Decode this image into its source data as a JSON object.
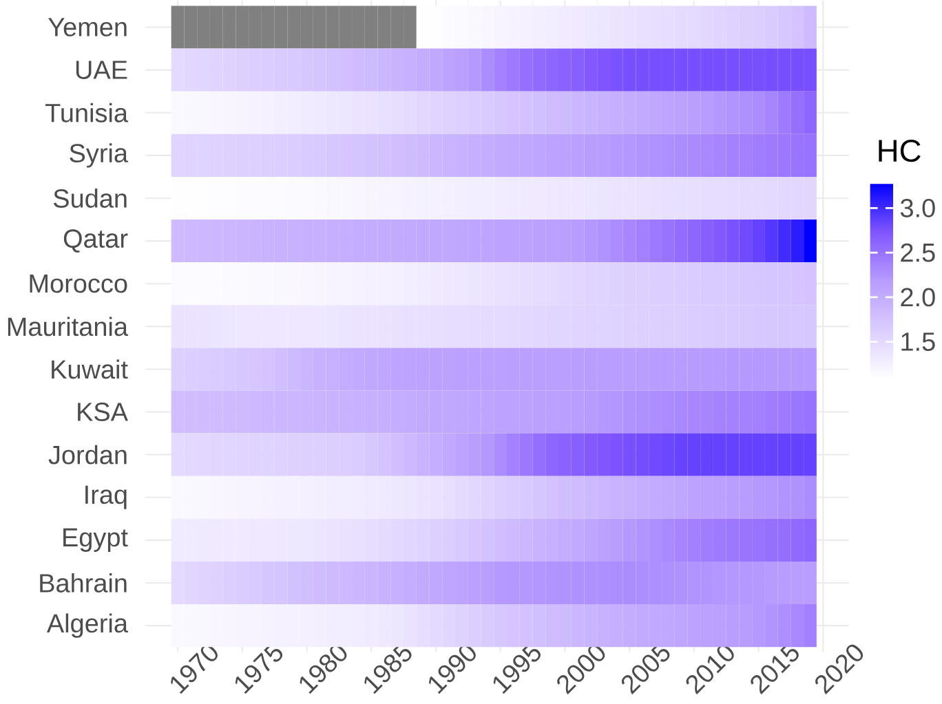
{
  "chart_data": {
    "type": "heatmap",
    "clabel": "HC",
    "grid": true,
    "x": [
      1970,
      1971,
      1972,
      1973,
      1974,
      1975,
      1976,
      1977,
      1978,
      1979,
      1980,
      1981,
      1982,
      1983,
      1984,
      1985,
      1986,
      1987,
      1988,
      1989,
      1990,
      1991,
      1992,
      1993,
      1994,
      1995,
      1996,
      1997,
      1998,
      1999,
      2000,
      2001,
      2002,
      2003,
      2004,
      2005,
      2006,
      2007,
      2008,
      2009,
      2010,
      2011,
      2012,
      2013,
      2014,
      2015,
      2016,
      2017,
      2018,
      2019
    ],
    "xlim": [
      1967.5,
      2022
    ],
    "xticks": [
      1970,
      1975,
      1980,
      1985,
      1990,
      1995,
      2000,
      2005,
      2010,
      2015,
      2020
    ],
    "y_categories": [
      "Yemen",
      "UAE",
      "Tunisia",
      "Syria",
      "Sudan",
      "Qatar",
      "Morocco",
      "Mauritania",
      "Kuwait",
      "KSA",
      "Jordan",
      "Iraq",
      "Egypt",
      "Bahrain",
      "Algeria"
    ],
    "clim": [
      1.08,
      3.28
    ],
    "cticks": [
      1.5,
      {
        "value": 2,
        "label": "2.0"
      },
      2.5,
      {
        "value": 3,
        "label": "3.0"
      }
    ],
    "cells": [
      [
        null,
        null,
        null,
        null,
        null,
        null,
        null,
        null,
        null,
        null,
        null,
        null,
        null,
        null,
        null,
        null,
        null,
        null,
        null,
        1.1,
        1.1,
        1.12,
        1.14,
        1.16,
        1.18,
        1.2,
        1.22,
        1.24,
        1.26,
        1.28,
        1.3,
        1.32,
        1.34,
        1.36,
        1.38,
        1.4,
        1.42,
        1.44,
        1.46,
        1.48,
        1.5,
        1.52,
        1.55,
        1.58,
        1.6,
        1.63,
        1.66,
        1.7,
        1.75,
        1.85
      ],
      [
        1.5,
        1.52,
        1.54,
        1.56,
        1.58,
        1.6,
        1.62,
        1.64,
        1.66,
        1.68,
        1.7,
        1.73,
        1.76,
        1.79,
        1.82,
        1.85,
        1.88,
        1.92,
        1.96,
        2.0,
        2.05,
        2.1,
        2.15,
        2.2,
        2.3,
        2.38,
        2.45,
        2.52,
        2.56,
        2.6,
        2.63,
        2.66,
        2.7,
        2.73,
        2.75,
        2.76,
        2.77,
        2.77,
        2.77,
        2.77,
        2.77,
        2.77,
        2.77,
        2.77,
        2.77,
        2.77,
        2.77,
        2.77,
        2.77,
        2.77
      ],
      [
        1.15,
        1.16,
        1.17,
        1.18,
        1.19,
        1.2,
        1.22,
        1.24,
        1.26,
        1.28,
        1.3,
        1.32,
        1.34,
        1.36,
        1.38,
        1.4,
        1.43,
        1.46,
        1.49,
        1.52,
        1.55,
        1.58,
        1.61,
        1.64,
        1.67,
        1.7,
        1.73,
        1.76,
        1.79,
        1.82,
        1.85,
        1.88,
        1.91,
        1.94,
        1.97,
        2.0,
        2.03,
        2.06,
        2.09,
        2.12,
        2.15,
        2.18,
        2.21,
        2.24,
        2.27,
        2.3,
        2.36,
        2.44,
        2.52,
        2.6
      ],
      [
        1.55,
        1.56,
        1.57,
        1.58,
        1.59,
        1.6,
        1.61,
        1.62,
        1.63,
        1.64,
        1.66,
        1.68,
        1.7,
        1.72,
        1.74,
        1.76,
        1.78,
        1.8,
        1.82,
        1.85,
        1.88,
        1.91,
        1.94,
        1.97,
        2.0,
        2.02,
        2.04,
        2.06,
        2.08,
        2.1,
        2.12,
        2.14,
        2.16,
        2.18,
        2.2,
        2.22,
        2.24,
        2.26,
        2.28,
        2.3,
        2.32,
        2.34,
        2.36,
        2.38,
        2.4,
        2.42,
        2.44,
        2.46,
        2.48,
        2.5
      ],
      [
        1.1,
        1.1,
        1.1,
        1.11,
        1.11,
        1.12,
        1.12,
        1.13,
        1.13,
        1.14,
        1.14,
        1.15,
        1.16,
        1.17,
        1.18,
        1.19,
        1.2,
        1.21,
        1.22,
        1.23,
        1.24,
        1.25,
        1.26,
        1.27,
        1.28,
        1.29,
        1.3,
        1.31,
        1.32,
        1.33,
        1.34,
        1.35,
        1.36,
        1.37,
        1.38,
        1.39,
        1.4,
        1.41,
        1.42,
        1.43,
        1.44,
        1.45,
        1.46,
        1.47,
        1.48,
        1.49,
        1.5,
        1.51,
        1.52,
        1.53
      ],
      [
        1.85,
        1.86,
        1.87,
        1.88,
        1.89,
        1.9,
        1.91,
        1.92,
        1.93,
        1.94,
        1.95,
        1.96,
        1.97,
        1.98,
        1.99,
        2.0,
        2.01,
        2.02,
        2.03,
        2.04,
        2.05,
        2.06,
        2.07,
        2.08,
        2.09,
        2.1,
        2.11,
        2.12,
        2.13,
        2.14,
        2.15,
        2.18,
        2.21,
        2.25,
        2.3,
        2.35,
        2.4,
        2.45,
        2.5,
        2.55,
        2.6,
        2.65,
        2.7,
        2.75,
        2.8,
        2.85,
        2.92,
        3.0,
        3.1,
        3.28
      ],
      [
        1.12,
        1.12,
        1.13,
        1.13,
        1.14,
        1.14,
        1.15,
        1.15,
        1.16,
        1.17,
        1.18,
        1.19,
        1.2,
        1.21,
        1.22,
        1.23,
        1.24,
        1.25,
        1.27,
        1.29,
        1.31,
        1.33,
        1.35,
        1.37,
        1.39,
        1.41,
        1.43,
        1.45,
        1.47,
        1.49,
        1.51,
        1.53,
        1.55,
        1.57,
        1.59,
        1.6,
        1.61,
        1.62,
        1.63,
        1.64,
        1.65,
        1.66,
        1.67,
        1.68,
        1.69,
        1.7,
        1.71,
        1.72,
        1.73,
        1.75
      ],
      [
        1.4,
        1.39,
        1.38,
        1.37,
        1.36,
        1.35,
        1.35,
        1.35,
        1.35,
        1.35,
        1.35,
        1.35,
        1.36,
        1.37,
        1.38,
        1.39,
        1.4,
        1.41,
        1.42,
        1.43,
        1.44,
        1.45,
        1.46,
        1.47,
        1.48,
        1.49,
        1.5,
        1.51,
        1.52,
        1.53,
        1.54,
        1.55,
        1.56,
        1.57,
        1.58,
        1.59,
        1.6,
        1.61,
        1.62,
        1.63,
        1.64,
        1.65,
        1.66,
        1.67,
        1.68,
        1.69,
        1.7,
        1.7,
        1.7,
        1.7
      ],
      [
        1.6,
        1.62,
        1.64,
        1.66,
        1.68,
        1.7,
        1.72,
        1.75,
        1.8,
        1.85,
        1.9,
        1.93,
        1.96,
        1.99,
        2.02,
        2.05,
        2.07,
        2.09,
        2.1,
        2.11,
        2.12,
        2.12,
        2.13,
        2.13,
        2.14,
        2.14,
        2.15,
        2.15,
        2.15,
        2.15,
        2.15,
        2.16,
        2.16,
        2.16,
        2.17,
        2.17,
        2.17,
        2.18,
        2.18,
        2.18,
        2.19,
        2.19,
        2.19,
        2.2,
        2.2,
        2.2,
        2.2,
        2.2,
        2.2,
        2.2
      ],
      [
        1.8,
        1.81,
        1.82,
        1.83,
        1.84,
        1.85,
        1.86,
        1.87,
        1.88,
        1.89,
        1.9,
        1.91,
        1.92,
        1.93,
        1.94,
        1.95,
        1.97,
        1.99,
        2.01,
        2.03,
        2.05,
        2.06,
        2.07,
        2.08,
        2.09,
        2.1,
        2.11,
        2.12,
        2.13,
        2.14,
        2.15,
        2.17,
        2.19,
        2.21,
        2.23,
        2.25,
        2.27,
        2.29,
        2.31,
        2.33,
        2.35,
        2.36,
        2.37,
        2.38,
        2.39,
        2.4,
        2.42,
        2.44,
        2.47,
        2.5
      ],
      [
        1.5,
        1.51,
        1.52,
        1.53,
        1.54,
        1.55,
        1.56,
        1.57,
        1.58,
        1.59,
        1.6,
        1.61,
        1.62,
        1.63,
        1.65,
        1.7,
        1.75,
        1.8,
        1.86,
        1.92,
        1.98,
        2.04,
        2.1,
        2.16,
        2.22,
        2.3,
        2.38,
        2.46,
        2.53,
        2.6,
        2.63,
        2.66,
        2.69,
        2.72,
        2.74,
        2.76,
        2.78,
        2.8,
        2.82,
        2.84,
        2.85,
        2.85,
        2.85,
        2.85,
        2.85,
        2.85,
        2.85,
        2.85,
        2.85,
        2.85
      ],
      [
        1.15,
        1.16,
        1.17,
        1.18,
        1.19,
        1.2,
        1.21,
        1.22,
        1.23,
        1.24,
        1.25,
        1.26,
        1.27,
        1.28,
        1.29,
        1.3,
        1.32,
        1.34,
        1.36,
        1.38,
        1.4,
        1.44,
        1.48,
        1.52,
        1.56,
        1.6,
        1.64,
        1.68,
        1.72,
        1.76,
        1.8,
        1.83,
        1.86,
        1.89,
        1.92,
        1.95,
        1.98,
        2.01,
        2.04,
        2.07,
        2.1,
        2.12,
        2.14,
        2.16,
        2.18,
        2.2,
        2.22,
        2.24,
        2.26,
        2.3
      ],
      [
        1.3,
        1.3,
        1.31,
        1.31,
        1.32,
        1.32,
        1.33,
        1.33,
        1.34,
        1.34,
        1.35,
        1.37,
        1.39,
        1.41,
        1.43,
        1.45,
        1.48,
        1.51,
        1.54,
        1.57,
        1.6,
        1.64,
        1.68,
        1.72,
        1.76,
        1.8,
        1.84,
        1.88,
        1.92,
        1.96,
        2.0,
        2.04,
        2.08,
        2.12,
        2.16,
        2.2,
        2.24,
        2.28,
        2.32,
        2.36,
        2.4,
        2.42,
        2.44,
        2.46,
        2.48,
        2.5,
        2.52,
        2.54,
        2.57,
        2.6
      ],
      [
        1.5,
        1.53,
        1.56,
        1.59,
        1.62,
        1.65,
        1.68,
        1.71,
        1.74,
        1.77,
        1.8,
        1.82,
        1.84,
        1.86,
        1.88,
        1.9,
        1.93,
        1.96,
        1.99,
        2.02,
        2.05,
        2.08,
        2.11,
        2.14,
        2.17,
        2.2,
        2.21,
        2.22,
        2.23,
        2.24,
        2.25,
        2.26,
        2.27,
        2.28,
        2.29,
        2.3,
        2.29,
        2.28,
        2.27,
        2.26,
        2.25,
        2.24,
        2.23,
        2.22,
        2.21,
        2.2,
        2.19,
        2.18,
        2.17,
        2.16
      ],
      [
        1.15,
        1.16,
        1.17,
        1.18,
        1.19,
        1.2,
        1.21,
        1.22,
        1.23,
        1.24,
        1.25,
        1.26,
        1.27,
        1.28,
        1.29,
        1.3,
        1.33,
        1.36,
        1.4,
        1.45,
        1.5,
        1.54,
        1.58,
        1.62,
        1.66,
        1.7,
        1.73,
        1.76,
        1.79,
        1.82,
        1.85,
        1.88,
        1.91,
        1.94,
        1.97,
        2.0,
        2.02,
        2.04,
        2.06,
        2.08,
        2.1,
        2.12,
        2.14,
        2.16,
        2.18,
        2.2,
        2.24,
        2.28,
        2.34,
        2.4
      ]
    ]
  }
}
